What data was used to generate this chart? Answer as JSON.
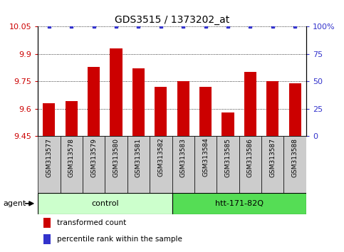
{
  "title": "GDS3515 / 1373202_at",
  "categories": [
    "GSM313577",
    "GSM313578",
    "GSM313579",
    "GSM313580",
    "GSM313581",
    "GSM313582",
    "GSM313583",
    "GSM313584",
    "GSM313585",
    "GSM313586",
    "GSM313587",
    "GSM313588"
  ],
  "bar_values": [
    9.63,
    9.64,
    9.83,
    9.93,
    9.82,
    9.72,
    9.75,
    9.72,
    9.58,
    9.8,
    9.75,
    9.74
  ],
  "percentile_values": [
    100,
    100,
    100,
    100,
    100,
    100,
    100,
    100,
    100,
    100,
    100,
    100
  ],
  "bar_color": "#cc0000",
  "percentile_color": "#3333cc",
  "ylim_left": [
    9.45,
    10.05
  ],
  "ylim_right": [
    0,
    100
  ],
  "yticks_left": [
    9.45,
    9.6,
    9.75,
    9.9,
    10.05
  ],
  "yticks_right": [
    0,
    25,
    50,
    75,
    100
  ],
  "yticklabels_left": [
    "9.45",
    "9.6",
    "9.75",
    "9.9",
    "10.05"
  ],
  "yticklabels_right": [
    "0",
    "25",
    "50",
    "75",
    "100%"
  ],
  "grid_color": "#000000",
  "control_color": "#ccffcc",
  "htt_color": "#55dd55",
  "tick_label_bg": "#cccccc",
  "agent_label": "agent",
  "legend_items": [
    {
      "label": "transformed count",
      "color": "#cc0000"
    },
    {
      "label": "percentile rank within the sample",
      "color": "#3333cc"
    }
  ],
  "bar_width": 0.55,
  "background_color": "#ffffff"
}
